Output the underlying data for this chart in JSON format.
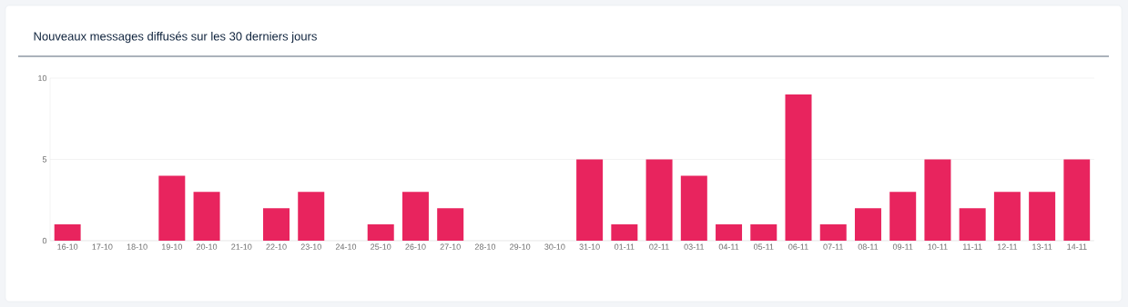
{
  "chart_data": {
    "type": "bar",
    "title": "Nouveaux messages diffusés sur les 30 derniers jours",
    "categories": [
      "16-10",
      "17-10",
      "18-10",
      "19-10",
      "20-10",
      "21-10",
      "22-10",
      "23-10",
      "24-10",
      "25-10",
      "26-10",
      "27-10",
      "28-10",
      "29-10",
      "30-10",
      "31-10",
      "01-11",
      "02-11",
      "03-11",
      "04-11",
      "05-11",
      "06-11",
      "07-11",
      "08-11",
      "09-11",
      "10-11",
      "11-11",
      "12-11",
      "13-11",
      "14-11"
    ],
    "values": [
      1,
      0,
      0,
      4,
      3,
      0,
      2,
      3,
      0,
      1,
      3,
      2,
      0,
      0,
      0,
      5,
      1,
      5,
      4,
      1,
      1,
      9,
      1,
      2,
      3,
      5,
      2,
      3,
      3,
      5
    ],
    "color": "#e8245e",
    "ylim": [
      0,
      10
    ],
    "yticks": [
      0,
      5,
      10
    ],
    "grid": "y"
  }
}
